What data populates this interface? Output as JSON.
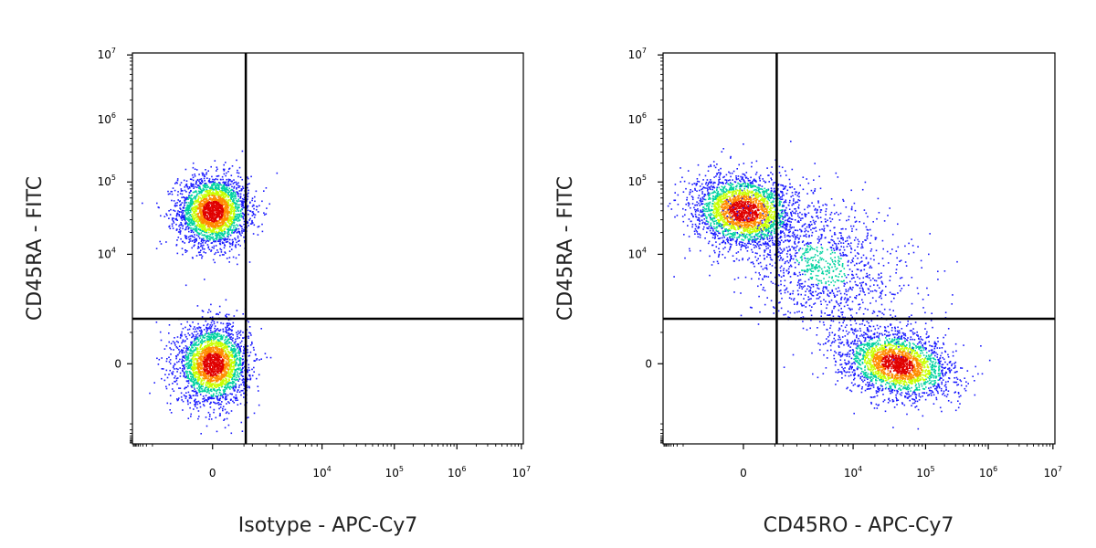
{
  "chart_data": [
    {
      "type": "scatter",
      "subtype": "flow-cytometry-density-dot-plot",
      "xlabel": "Isotype - APC-Cy7",
      "ylabel": "CD45RA - FITC",
      "x_scale": "biexponential",
      "y_scale": "biexponential",
      "xlim": [
        -10000,
        10000000
      ],
      "ylim": [
        -10000,
        10000000
      ],
      "x_ticks": [
        "0",
        "10^4",
        "10^5",
        "10^6",
        "10^7"
      ],
      "y_ticks": [
        "0",
        "10^4",
        "10^5",
        "10^6",
        "10^7"
      ],
      "quadrant_gate": {
        "x": 1500,
        "y": 2500
      },
      "populations": [
        {
          "center": {
            "x": 0,
            "y": 40000
          },
          "density": "high"
        },
        {
          "center": {
            "x": 0,
            "y": 0
          },
          "density": "high"
        }
      ],
      "grid": false,
      "legend": "none"
    },
    {
      "type": "scatter",
      "subtype": "flow-cytometry-density-dot-plot",
      "xlabel": "CD45RO - APC-Cy7",
      "ylabel": "CD45RA - FITC",
      "x_scale": "biexponential",
      "y_scale": "biexponential",
      "xlim": [
        -10000,
        10000000
      ],
      "ylim": [
        -10000,
        10000000
      ],
      "x_ticks": [
        "0",
        "10^4",
        "10^5",
        "10^6",
        "10^7"
      ],
      "y_ticks": [
        "0",
        "10^4",
        "10^5",
        "10^6",
        "10^7"
      ],
      "quadrant_gate": {
        "x": 1500,
        "y": 2500
      },
      "populations": [
        {
          "center": {
            "x": 0,
            "y": 40000
          },
          "density": "high"
        },
        {
          "center": {
            "x": 40000,
            "y": 0
          },
          "density": "high"
        },
        {
          "center": {
            "x": 5000,
            "y": 8000
          },
          "density": "low"
        }
      ],
      "grid": false,
      "legend": "none"
    }
  ],
  "palette": {
    "density_low": "#1a1aff",
    "density_mid": "#00d2a0",
    "density_high_1": "#c8ff00",
    "density_high_2": "#ff8c00",
    "density_peak": "#e00000",
    "gate_line": "#000000"
  }
}
